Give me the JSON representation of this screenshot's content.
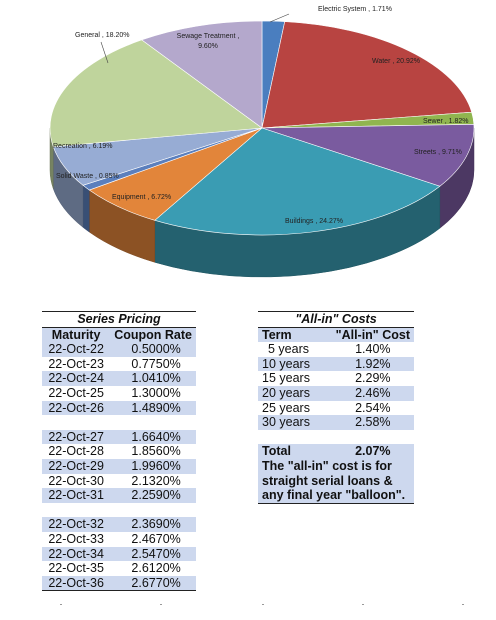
{
  "chart_data": {
    "type": "pie",
    "slices": [
      {
        "label": "Electric System",
        "value": 1.71,
        "display": "Electric System , 1.71%",
        "color": "#4a7ebf"
      },
      {
        "label": "Water",
        "value": 20.92,
        "display": "Water , 20.92%",
        "color": "#b84441"
      },
      {
        "label": "Sewer",
        "value": 1.82,
        "display": "Sewer , 1.82%",
        "color": "#90b54f"
      },
      {
        "label": "Streets",
        "value": 9.71,
        "display": "Streets , 9.71%",
        "color": "#7a5b9f"
      },
      {
        "label": "Buildings",
        "value": 24.27,
        "display": "Buildings , 24.27%",
        "color": "#3a9cb3"
      },
      {
        "label": "Equipment",
        "value": 6.72,
        "display": "Equipment , 6.72%",
        "color": "#e2853a"
      },
      {
        "label": "Solid Waste",
        "value": 0.85,
        "display": "Solid Waste , 0.85%",
        "color": "#5b7fbd"
      },
      {
        "label": "Recreation",
        "value": 6.19,
        "display": "Recreation , 6.19%",
        "color": "#97acd4"
      },
      {
        "label": "General",
        "value": 18.2,
        "display": "General , 18.20%",
        "color": "#bfd49c"
      },
      {
        "label": "Sewage Treatment",
        "value": 9.6,
        "display_lines": [
          "Sewage Treatment ,",
          "9.60%"
        ],
        "color": "#b4a8cc"
      }
    ]
  },
  "series_pricing": {
    "title": "Series Pricing",
    "col_maturity": "Maturity",
    "col_rate": "Coupon Rate",
    "rows": [
      {
        "maturity": "22-Oct-22",
        "rate": "0.5000%"
      },
      {
        "maturity": "22-Oct-23",
        "rate": "0.7750%"
      },
      {
        "maturity": "22-Oct-24",
        "rate": "1.0410%"
      },
      {
        "maturity": "22-Oct-25",
        "rate": "1.3000%"
      },
      {
        "maturity": "22-Oct-26",
        "rate": "1.4890%"
      },
      {
        "maturity": "",
        "rate": ""
      },
      {
        "maturity": "22-Oct-27",
        "rate": "1.6640%"
      },
      {
        "maturity": "22-Oct-28",
        "rate": "1.8560%"
      },
      {
        "maturity": "22-Oct-29",
        "rate": "1.9960%"
      },
      {
        "maturity": "22-Oct-30",
        "rate": "2.1320%"
      },
      {
        "maturity": "22-Oct-31",
        "rate": "2.2590%"
      },
      {
        "maturity": "",
        "rate": ""
      },
      {
        "maturity": "22-Oct-32",
        "rate": "2.3690%"
      },
      {
        "maturity": "22-Oct-33",
        "rate": "2.4670%"
      },
      {
        "maturity": "22-Oct-34",
        "rate": "2.5470%"
      },
      {
        "maturity": "22-Oct-35",
        "rate": "2.6120%"
      },
      {
        "maturity": "22-Oct-36",
        "rate": "2.6770%"
      }
    ]
  },
  "all_in_costs": {
    "title": "\"All-in\" Costs",
    "col_term": "Term",
    "col_cost": "\"All-in\" Cost",
    "rows": [
      {
        "term": "5 years",
        "cost": "1.40%"
      },
      {
        "term": "10 years",
        "cost": "1.92%"
      },
      {
        "term": "15 years",
        "cost": "2.29%"
      },
      {
        "term": "20 years",
        "cost": "2.46%"
      },
      {
        "term": "25 years",
        "cost": "2.54%"
      },
      {
        "term": "30 years",
        "cost": "2.58%"
      }
    ],
    "total_label": "Total",
    "total_value": "2.07%",
    "note": "The \"all-in\" cost is for straight serial loans & any final year \"balloon\"."
  }
}
